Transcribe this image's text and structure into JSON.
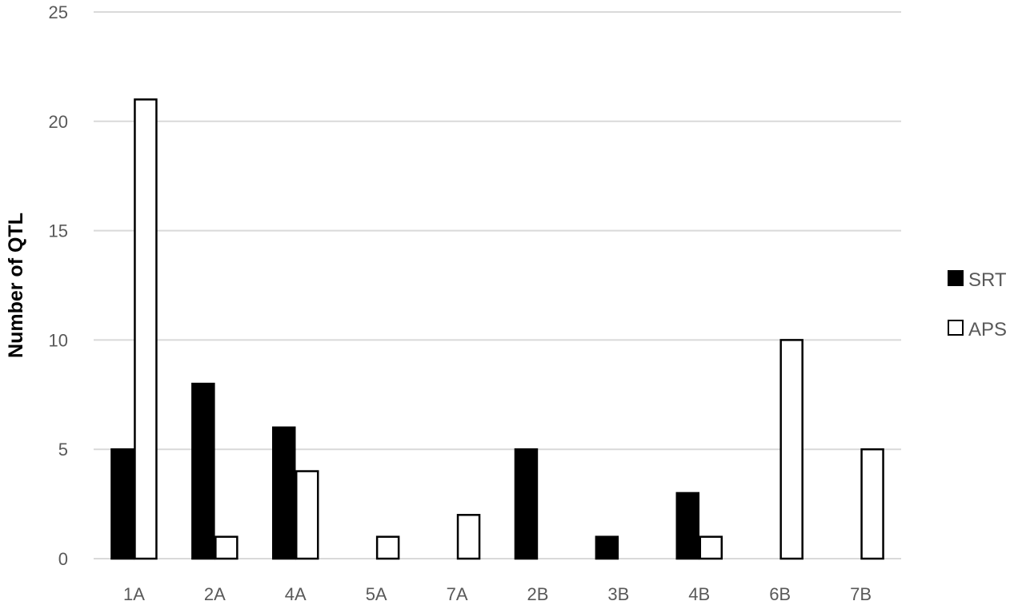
{
  "chart_data": {
    "type": "bar",
    "title": "",
    "xlabel": "",
    "ylabel": "Number of QTL",
    "ylim": [
      0,
      25
    ],
    "yticks": [
      0,
      5,
      10,
      15,
      20,
      25
    ],
    "grid": true,
    "legend_position": "right",
    "categories": [
      "1A",
      "2A",
      "4A",
      "5A",
      "7A",
      "2B",
      "3B",
      "4B",
      "6B",
      "7B"
    ],
    "series": [
      {
        "name": "SRT",
        "fill": "#000000",
        "stroke": "#000000",
        "values": [
          5,
          8,
          6,
          0,
          0,
          5,
          1,
          3,
          0,
          0
        ]
      },
      {
        "name": "APS",
        "fill": "#ffffff",
        "stroke": "#000000",
        "values": [
          21,
          1,
          4,
          1,
          2,
          0,
          0,
          1,
          10,
          5
        ]
      }
    ]
  }
}
